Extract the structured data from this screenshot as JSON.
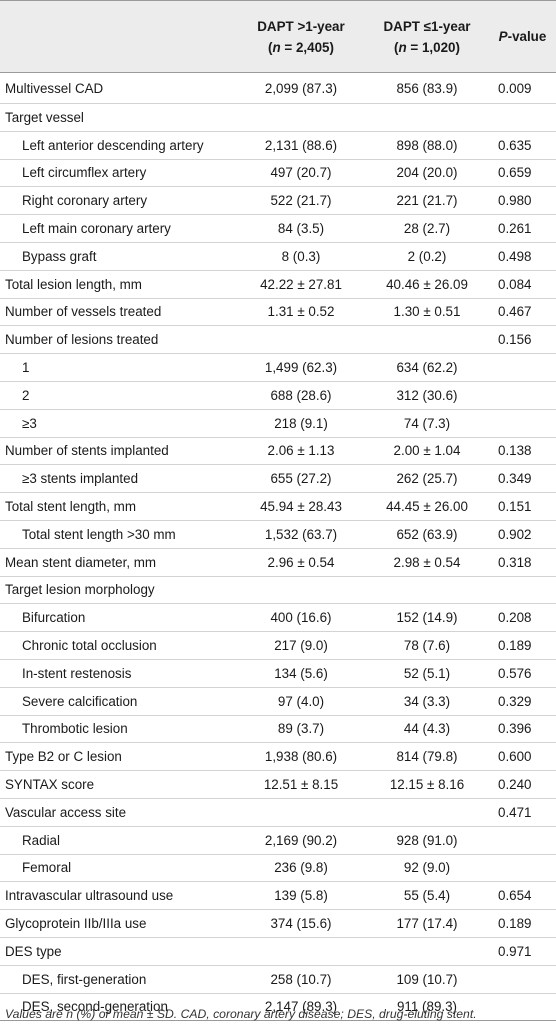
{
  "headers": {
    "col2_line1": "DAPT >1-year",
    "col2_line2": "(n = 2,405)",
    "col3_line1": "DAPT ≤1-year",
    "col3_line2": "(n = 1,020)",
    "col4": "P-value"
  },
  "rows": [
    {
      "label": "Multivessel CAD",
      "indent": false,
      "a": "2,099 (87.3)",
      "b": "856 (83.9)",
      "p": "0.009"
    },
    {
      "label": "Target vessel",
      "indent": false,
      "a": "",
      "b": "",
      "p": ""
    },
    {
      "label": "Left anterior descending artery",
      "indent": true,
      "a": "2,131 (88.6)",
      "b": "898 (88.0)",
      "p": "0.635"
    },
    {
      "label": "Left circumflex artery",
      "indent": true,
      "a": "497 (20.7)",
      "b": "204 (20.0)",
      "p": "0.659"
    },
    {
      "label": "Right coronary artery",
      "indent": true,
      "a": "522 (21.7)",
      "b": "221 (21.7)",
      "p": "0.980"
    },
    {
      "label": "Left main coronary artery",
      "indent": true,
      "a": "84 (3.5)",
      "b": "28 (2.7)",
      "p": "0.261"
    },
    {
      "label": "Bypass graft",
      "indent": true,
      "a": "8 (0.3)",
      "b": "2 (0.2)",
      "p": "0.498"
    },
    {
      "label": "Total lesion length, mm",
      "indent": false,
      "a": "42.22 ± 27.81",
      "b": "40.46 ± 26.09",
      "p": "0.084"
    },
    {
      "label": "Number of vessels treated",
      "indent": false,
      "a": "1.31 ± 0.52",
      "b": "1.30 ± 0.51",
      "p": "0.467"
    },
    {
      "label": "Number of lesions treated",
      "indent": false,
      "a": "",
      "b": "",
      "p": "0.156"
    },
    {
      "label": "1",
      "indent": true,
      "a": "1,499 (62.3)",
      "b": "634 (62.2)",
      "p": ""
    },
    {
      "label": "2",
      "indent": true,
      "a": "688 (28.6)",
      "b": "312 (30.6)",
      "p": ""
    },
    {
      "label": "≥3",
      "indent": true,
      "a": "218 (9.1)",
      "b": "74 (7.3)",
      "p": ""
    },
    {
      "label": "Number of stents implanted",
      "indent": false,
      "a": "2.06 ± 1.13",
      "b": "2.00 ± 1.04",
      "p": "0.138"
    },
    {
      "label": "≥3 stents implanted",
      "indent": true,
      "a": "655 (27.2)",
      "b": "262 (25.7)",
      "p": "0.349"
    },
    {
      "label": "Total stent length, mm",
      "indent": false,
      "a": "45.94 ± 28.43",
      "b": "44.45 ± 26.00",
      "p": "0.151"
    },
    {
      "label": "Total stent length >30 mm",
      "indent": true,
      "a": "1,532 (63.7)",
      "b": "652 (63.9)",
      "p": "0.902"
    },
    {
      "label": "Mean stent diameter, mm",
      "indent": false,
      "a": "2.96 ± 0.54",
      "b": "2.98 ± 0.54",
      "p": "0.318"
    },
    {
      "label": "Target lesion morphology",
      "indent": false,
      "a": "",
      "b": "",
      "p": ""
    },
    {
      "label": "Bifurcation",
      "indent": true,
      "a": "400 (16.6)",
      "b": "152 (14.9)",
      "p": "0.208"
    },
    {
      "label": "Chronic total occlusion",
      "indent": true,
      "a": "217 (9.0)",
      "b": "78 (7.6)",
      "p": "0.189"
    },
    {
      "label": "In-stent restenosis",
      "indent": true,
      "a": "134 (5.6)",
      "b": "52 (5.1)",
      "p": "0.576"
    },
    {
      "label": "Severe calcification",
      "indent": true,
      "a": "97 (4.0)",
      "b": "34 (3.3)",
      "p": "0.329"
    },
    {
      "label": "Thrombotic lesion",
      "indent": true,
      "a": "89 (3.7)",
      "b": "44 (4.3)",
      "p": "0.396"
    },
    {
      "label": "Type B2 or C lesion",
      "indent": false,
      "a": "1,938 (80.6)",
      "b": "814 (79.8)",
      "p": "0.600"
    },
    {
      "label": "SYNTAX score",
      "indent": false,
      "a": "12.51 ± 8.15",
      "b": "12.15 ± 8.16",
      "p": "0.240"
    },
    {
      "label": "Vascular access site",
      "indent": false,
      "a": "",
      "b": "",
      "p": "0.471"
    },
    {
      "label": "Radial",
      "indent": true,
      "a": "2,169 (90.2)",
      "b": "928 (91.0)",
      "p": ""
    },
    {
      "label": "Femoral",
      "indent": true,
      "a": "236 (9.8)",
      "b": "92 (9.0)",
      "p": ""
    },
    {
      "label": "Intravascular ultrasound use",
      "indent": false,
      "a": "139 (5.8)",
      "b": "55 (5.4)",
      "p": "0.654"
    },
    {
      "label": "Glycoprotein IIb/IIIa use",
      "indent": false,
      "a": "374 (15.6)",
      "b": "177 (17.4)",
      "p": "0.189"
    },
    {
      "label": "DES type",
      "indent": false,
      "a": "",
      "b": "",
      "p": "0.971"
    },
    {
      "label": "DES, first-generation",
      "indent": true,
      "a": "258 (10.7)",
      "b": "109 (10.7)",
      "p": ""
    },
    {
      "label": "DES, second-generation",
      "indent": true,
      "a": "2,147 (89.3)",
      "b": "911 (89.3)",
      "p": ""
    }
  ],
  "footnote": "Values are n (%) or mean ± SD. CAD, coronary artery disease; DES, drug-eluting stent."
}
